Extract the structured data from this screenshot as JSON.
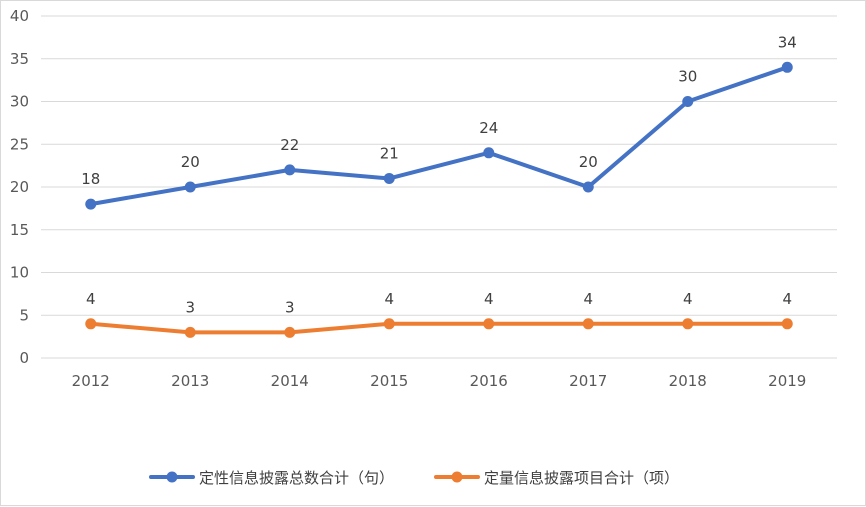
{
  "chart_data": {
    "type": "line",
    "title": "",
    "xlabel": "",
    "ylabel": "",
    "categories": [
      "2012",
      "2013",
      "2014",
      "2015",
      "2016",
      "2017",
      "2018",
      "2019"
    ],
    "ylim": [
      0,
      40
    ],
    "yticks": [
      0,
      5,
      10,
      15,
      20,
      25,
      30,
      35,
      40
    ],
    "grid": true,
    "legend_position": "bottom",
    "series": [
      {
        "name": "定性信息披露总数合计（句）",
        "color": "#4472C4",
        "values": [
          18,
          20,
          22,
          21,
          24,
          20,
          30,
          34
        ]
      },
      {
        "name": "定量信息披露项目合计（项）",
        "color": "#ED7D31",
        "values": [
          4,
          3,
          3,
          4,
          4,
          4,
          4,
          4
        ]
      }
    ]
  }
}
